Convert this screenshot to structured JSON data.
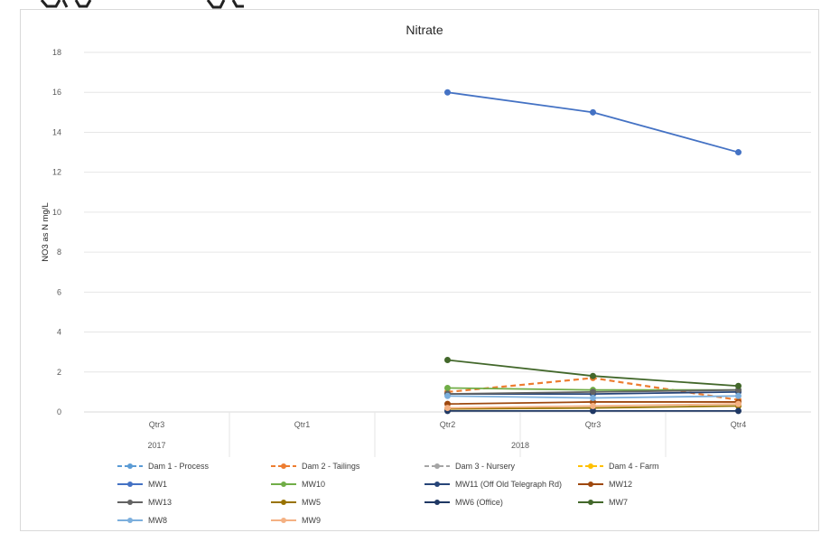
{
  "chart_data": {
    "type": "line",
    "title": "Nitrate",
    "ylabel": "NO3 as N mg/L",
    "xlabel": "",
    "ylim": [
      0,
      18
    ],
    "yticks": [
      0,
      2,
      4,
      6,
      8,
      10,
      12,
      14,
      16,
      18
    ],
    "categories": [
      "Qtr3",
      "Qtr1",
      "Qtr2",
      "Qtr3",
      "Qtr4"
    ],
    "category_groups": [
      {
        "label": "2017",
        "span": [
          0,
          0
        ]
      },
      {
        "label": "2018",
        "span": [
          1,
          4
        ]
      }
    ],
    "grid": true,
    "legend_position": "bottom",
    "series": [
      {
        "name": "Dam 1 - Process",
        "color": "#5B9BD5",
        "dashed": true,
        "values": [
          null,
          null,
          null,
          null,
          null
        ]
      },
      {
        "name": "Dam 2 - Tailings",
        "color": "#ED7D31",
        "dashed": true,
        "values": [
          null,
          null,
          1.0,
          1.7,
          0.6
        ]
      },
      {
        "name": "Dam 3 - Nursery",
        "color": "#A5A5A5",
        "dashed": true,
        "values": [
          null,
          null,
          null,
          null,
          null
        ]
      },
      {
        "name": "Dam 4 - Farm",
        "color": "#FFC000",
        "dashed": true,
        "values": [
          null,
          null,
          null,
          null,
          null
        ]
      },
      {
        "name": "MW1",
        "color": "#4472C4",
        "dashed": false,
        "values": [
          null,
          null,
          16.0,
          15.0,
          13.0
        ]
      },
      {
        "name": "MW10",
        "color": "#70AD47",
        "dashed": false,
        "values": [
          null,
          null,
          1.2,
          1.1,
          1.1
        ]
      },
      {
        "name": "MW11 (Off Old Telegraph Rd)",
        "color": "#264478",
        "dashed": false,
        "values": [
          null,
          null,
          0.9,
          0.9,
          1.0
        ]
      },
      {
        "name": "MW12",
        "color": "#9E480E",
        "dashed": false,
        "values": [
          null,
          null,
          0.4,
          0.5,
          0.5
        ]
      },
      {
        "name": "MW13",
        "color": "#636363",
        "dashed": false,
        "values": [
          null,
          null,
          0.9,
          1.0,
          1.1
        ]
      },
      {
        "name": "MW5",
        "color": "#997300",
        "dashed": false,
        "values": [
          null,
          null,
          0.15,
          0.2,
          0.3
        ]
      },
      {
        "name": "MW6 (Office)",
        "color": "#1F3864",
        "dashed": false,
        "values": [
          null,
          null,
          0.05,
          0.05,
          0.05
        ]
      },
      {
        "name": "MW7",
        "color": "#43682B",
        "dashed": false,
        "values": [
          null,
          null,
          2.6,
          1.8,
          1.3
        ]
      },
      {
        "name": "MW8",
        "color": "#7CAFDD",
        "dashed": false,
        "values": [
          null,
          null,
          0.8,
          0.7,
          0.8
        ]
      },
      {
        "name": "MW9",
        "color": "#F4B183",
        "dashed": false,
        "values": [
          null,
          null,
          0.2,
          0.3,
          0.4
        ]
      }
    ]
  }
}
